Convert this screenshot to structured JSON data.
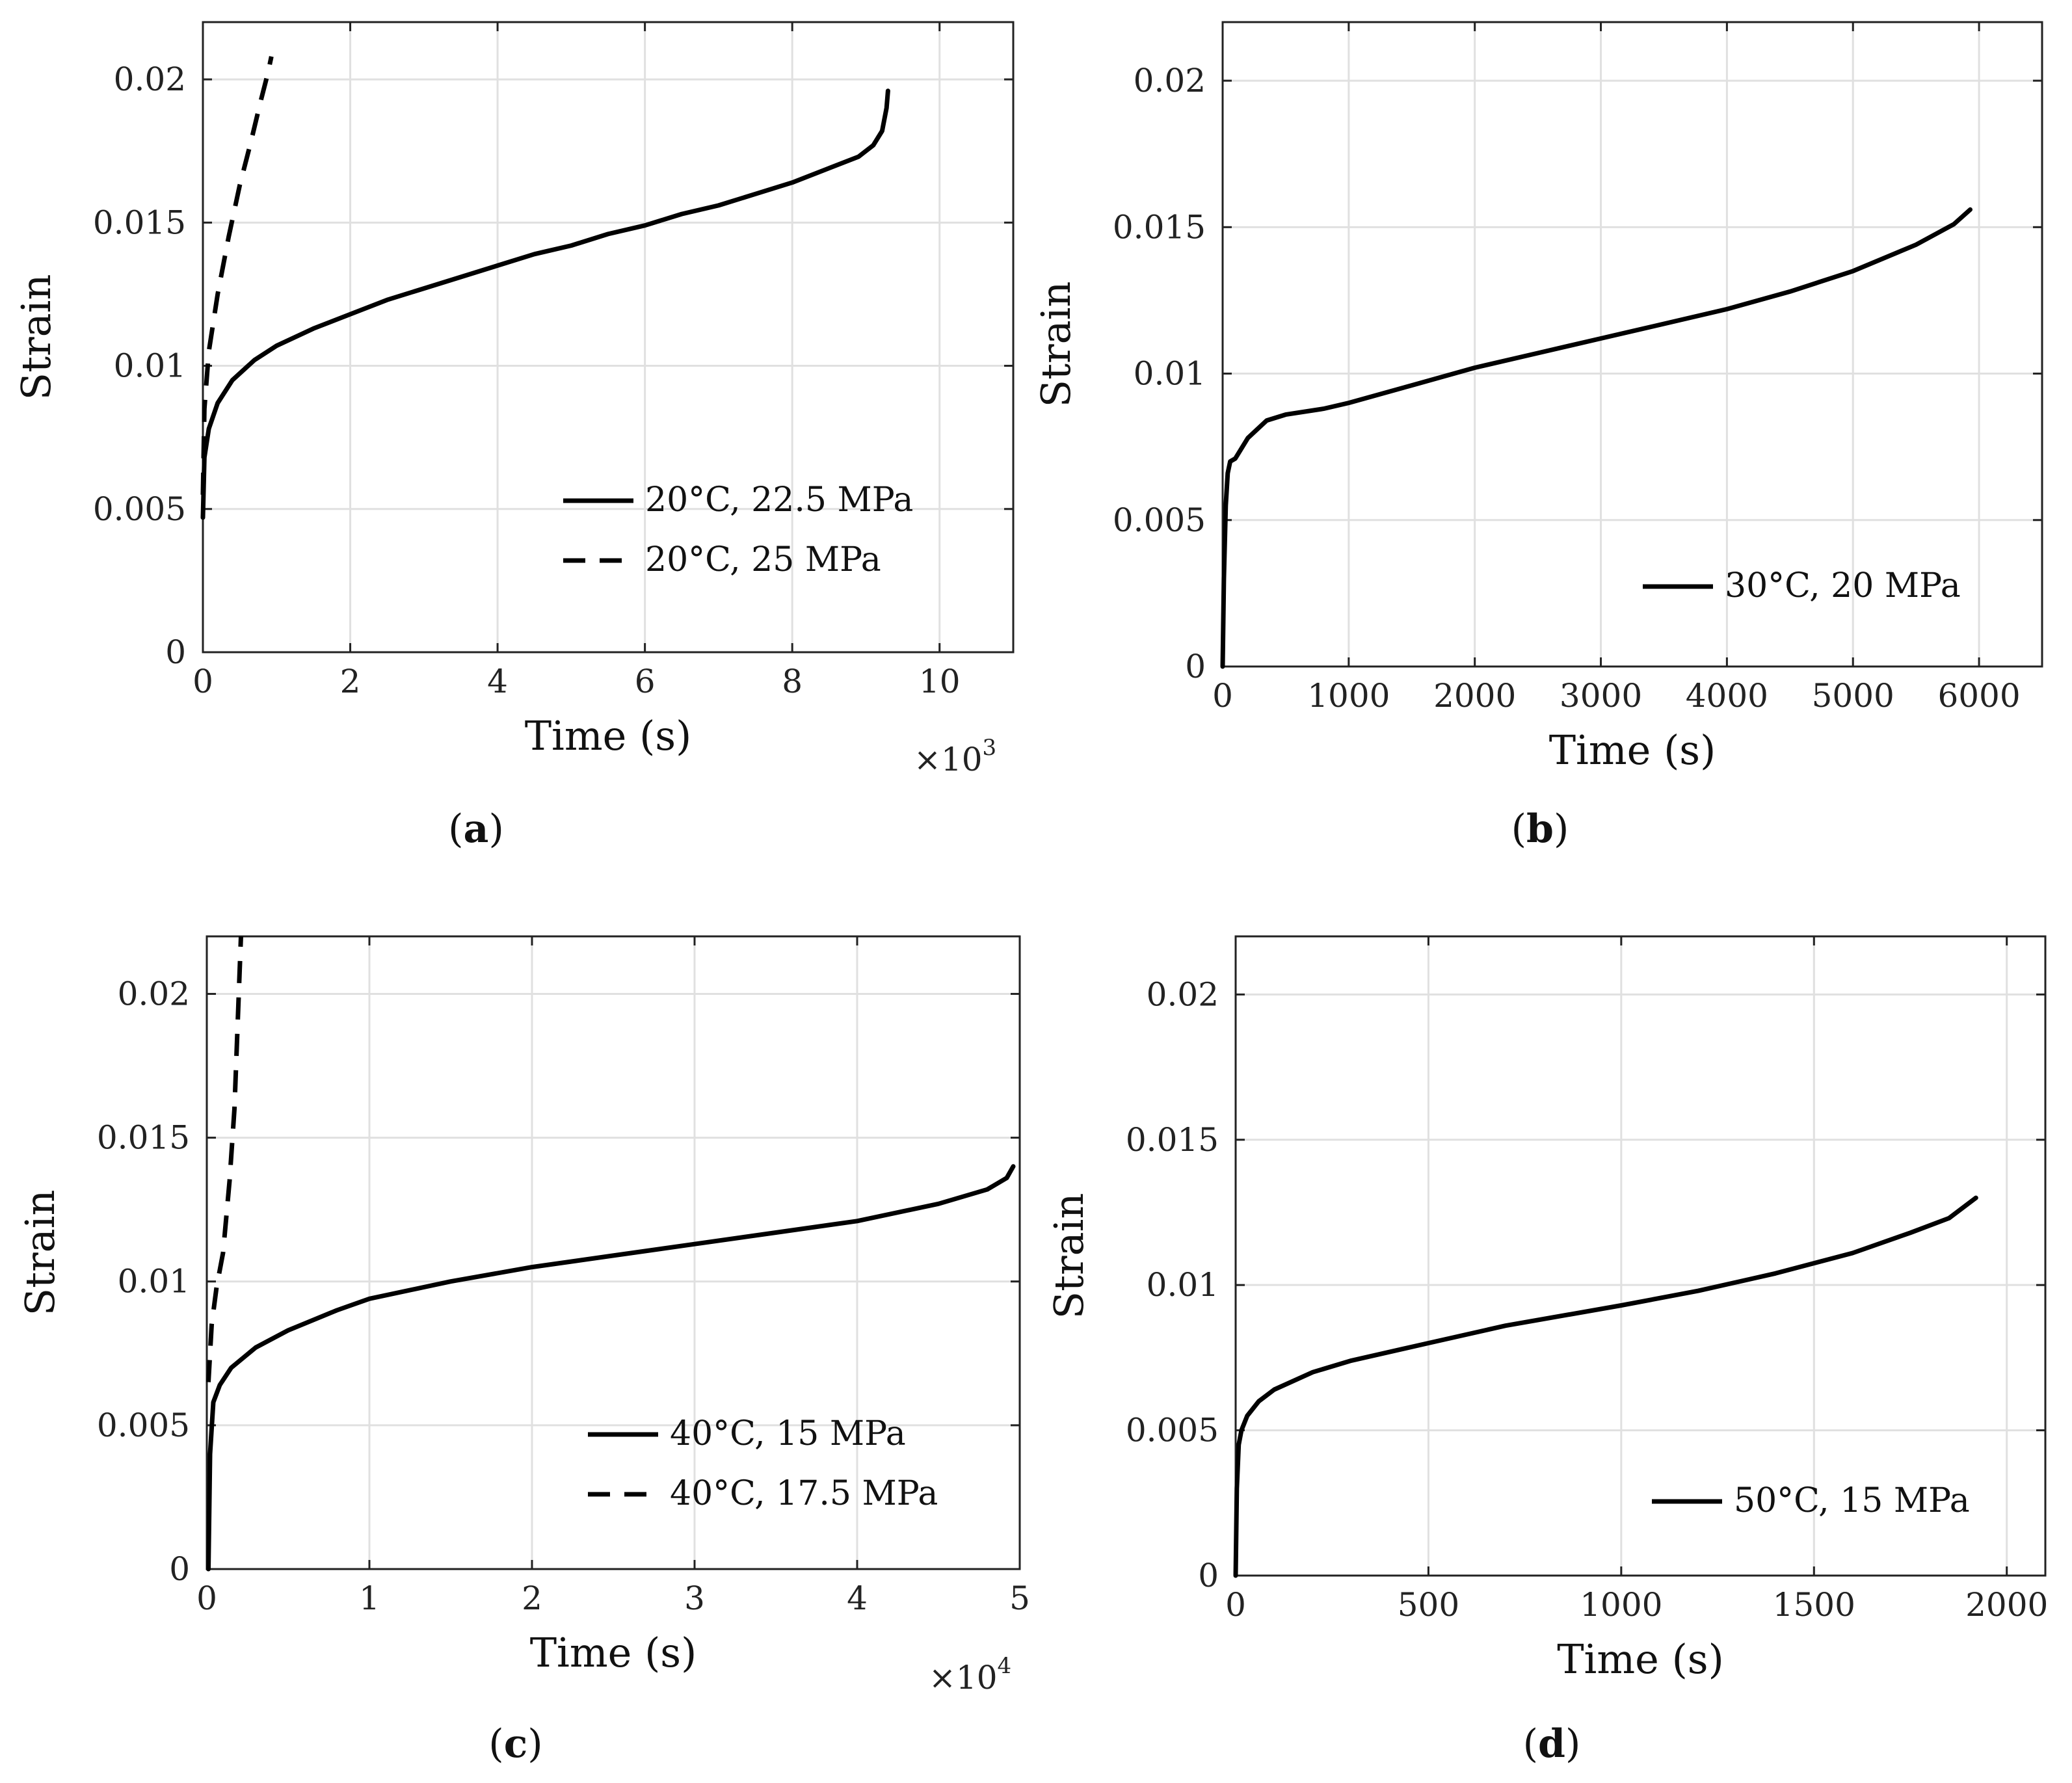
{
  "chart_data": [
    {
      "id": "a",
      "type": "line",
      "caption_letter": "a",
      "xlabel": "Time (s)",
      "ylabel": "Strain",
      "x_exponent_base": "×10",
      "x_exponent_power": "3",
      "xlim": [
        0,
        11
      ],
      "ylim": [
        0,
        0.022
      ],
      "xticks": [
        0,
        2,
        4,
        6,
        8,
        10
      ],
      "xtick_labels": [
        "0",
        "2",
        "4",
        "6",
        "8",
        "10"
      ],
      "yticks": [
        0,
        0.005,
        0.01,
        0.015,
        0.02
      ],
      "ytick_labels": [
        "0",
        "0.005",
        "0.01",
        "0.015",
        "0.02"
      ],
      "legend_position": "bottom-right",
      "series": [
        {
          "name": "20°C, 22.5 MPa",
          "style": "solid",
          "points": [
            [
              0,
              0.0047
            ],
            [
              0.02,
              0.0068
            ],
            [
              0.08,
              0.0078
            ],
            [
              0.2,
              0.0087
            ],
            [
              0.4,
              0.0095
            ],
            [
              0.7,
              0.0102
            ],
            [
              1.0,
              0.0107
            ],
            [
              1.5,
              0.0113
            ],
            [
              2.0,
              0.0118
            ],
            [
              2.5,
              0.0123
            ],
            [
              3.0,
              0.0127
            ],
            [
              3.5,
              0.0131
            ],
            [
              4.0,
              0.0135
            ],
            [
              4.5,
              0.0139
            ],
            [
              5.0,
              0.0142
            ],
            [
              5.5,
              0.0146
            ],
            [
              6.0,
              0.0149
            ],
            [
              6.5,
              0.0153
            ],
            [
              7.0,
              0.0156
            ],
            [
              7.5,
              0.016
            ],
            [
              8.0,
              0.0164
            ],
            [
              8.5,
              0.0169
            ],
            [
              8.9,
              0.0173
            ],
            [
              9.1,
              0.0177
            ],
            [
              9.22,
              0.0182
            ],
            [
              9.28,
              0.019
            ],
            [
              9.3,
              0.0196
            ]
          ]
        },
        {
          "name": "20°C, 25 MPa",
          "style": "dashed",
          "points": [
            [
              0,
              0.0055
            ],
            [
              0.02,
              0.0085
            ],
            [
              0.08,
              0.0105
            ],
            [
              0.2,
              0.0125
            ],
            [
              0.35,
              0.0145
            ],
            [
              0.5,
              0.0163
            ],
            [
              0.65,
              0.0178
            ],
            [
              0.78,
              0.0192
            ],
            [
              0.88,
              0.0202
            ],
            [
              0.93,
              0.0208
            ]
          ]
        }
      ]
    },
    {
      "id": "b",
      "type": "line",
      "caption_letter": "b",
      "xlabel": "Time (s)",
      "ylabel": "Strain",
      "xlim": [
        0,
        6500
      ],
      "ylim": [
        0,
        0.022
      ],
      "xticks": [
        0,
        1000,
        2000,
        3000,
        4000,
        5000,
        6000
      ],
      "xtick_labels": [
        "0",
        "1000",
        "2000",
        "3000",
        "4000",
        "5000",
        "6000"
      ],
      "yticks": [
        0,
        0.005,
        0.01,
        0.015,
        0.02
      ],
      "ytick_labels": [
        "0",
        "0.005",
        "0.01",
        "0.015",
        "0.02"
      ],
      "legend_position": "bottom-right",
      "series": [
        {
          "name": "30°C, 20 MPa",
          "style": "solid",
          "points": [
            [
              0,
              0
            ],
            [
              10,
              0.003
            ],
            [
              25,
              0.0055
            ],
            [
              40,
              0.0066
            ],
            [
              60,
              0.007
            ],
            [
              100,
              0.0071
            ],
            [
              200,
              0.0078
            ],
            [
              350,
              0.0084
            ],
            [
              500,
              0.0086
            ],
            [
              800,
              0.0088
            ],
            [
              1000,
              0.009
            ],
            [
              1500,
              0.0096
            ],
            [
              2000,
              0.0102
            ],
            [
              2500,
              0.0107
            ],
            [
              3000,
              0.0112
            ],
            [
              3500,
              0.0117
            ],
            [
              4000,
              0.0122
            ],
            [
              4500,
              0.0128
            ],
            [
              5000,
              0.0135
            ],
            [
              5500,
              0.0144
            ],
            [
              5800,
              0.0151
            ],
            [
              5930,
              0.0156
            ]
          ]
        }
      ]
    },
    {
      "id": "c",
      "type": "line",
      "caption_letter": "c",
      "xlabel": "Time (s)",
      "ylabel": "Strain",
      "x_exponent_base": "×10",
      "x_exponent_power": "4",
      "xlim": [
        0,
        5
      ],
      "ylim": [
        0,
        0.022
      ],
      "xticks": [
        0,
        1,
        2,
        3,
        4,
        5
      ],
      "xtick_labels": [
        "0",
        "1",
        "2",
        "3",
        "4",
        "5"
      ],
      "yticks": [
        0,
        0.005,
        0.01,
        0.015,
        0.02
      ],
      "ytick_labels": [
        "0",
        "0.005",
        "0.01",
        "0.015",
        "0.02"
      ],
      "legend_position": "bottom-right",
      "series": [
        {
          "name": "40°C, 15 MPa",
          "style": "solid",
          "points": [
            [
              0.01,
              0
            ],
            [
              0.02,
              0.004
            ],
            [
              0.04,
              0.0058
            ],
            [
              0.08,
              0.0064
            ],
            [
              0.15,
              0.007
            ],
            [
              0.3,
              0.0077
            ],
            [
              0.5,
              0.0083
            ],
            [
              0.8,
              0.009
            ],
            [
              1.0,
              0.0094
            ],
            [
              1.5,
              0.01
            ],
            [
              2.0,
              0.0105
            ],
            [
              2.5,
              0.0109
            ],
            [
              3.0,
              0.0113
            ],
            [
              3.5,
              0.0117
            ],
            [
              4.0,
              0.0121
            ],
            [
              4.5,
              0.0127
            ],
            [
              4.8,
              0.0132
            ],
            [
              4.92,
              0.0136
            ],
            [
              4.96,
              0.014
            ]
          ]
        },
        {
          "name": "40°C, 17.5 MPa",
          "style": "dashed",
          "points": [
            [
              0.01,
              0.0065
            ],
            [
              0.03,
              0.0085
            ],
            [
              0.06,
              0.0098
            ],
            [
              0.1,
              0.011
            ],
            [
              0.14,
              0.0135
            ],
            [
              0.17,
              0.016
            ],
            [
              0.19,
              0.019
            ],
            [
              0.21,
              0.022
            ]
          ]
        }
      ]
    },
    {
      "id": "d",
      "type": "line",
      "caption_letter": "d",
      "xlabel": "Time (s)",
      "ylabel": "Strain",
      "xlim": [
        0,
        2100
      ],
      "ylim": [
        0,
        0.022
      ],
      "xticks": [
        0,
        500,
        1000,
        1500,
        2000
      ],
      "xtick_labels": [
        "0",
        "500",
        "1000",
        "1500",
        "2000"
      ],
      "yticks": [
        0,
        0.005,
        0.01,
        0.015,
        0.02
      ],
      "ytick_labels": [
        "0",
        "0.005",
        "0.01",
        "0.015",
        "0.02"
      ],
      "legend_position": "bottom-right",
      "series": [
        {
          "name": "50°C, 15 MPa",
          "style": "solid",
          "points": [
            [
              0,
              0
            ],
            [
              3,
              0.003
            ],
            [
              8,
              0.0045
            ],
            [
              15,
              0.005
            ],
            [
              30,
              0.0055
            ],
            [
              60,
              0.006
            ],
            [
              100,
              0.0064
            ],
            [
              200,
              0.007
            ],
            [
              300,
              0.0074
            ],
            [
              500,
              0.008
            ],
            [
              700,
              0.0086
            ],
            [
              1000,
              0.0093
            ],
            [
              1200,
              0.0098
            ],
            [
              1400,
              0.0104
            ],
            [
              1600,
              0.0111
            ],
            [
              1750,
              0.0118
            ],
            [
              1850,
              0.0123
            ],
            [
              1920,
              0.013
            ]
          ]
        }
      ]
    }
  ]
}
